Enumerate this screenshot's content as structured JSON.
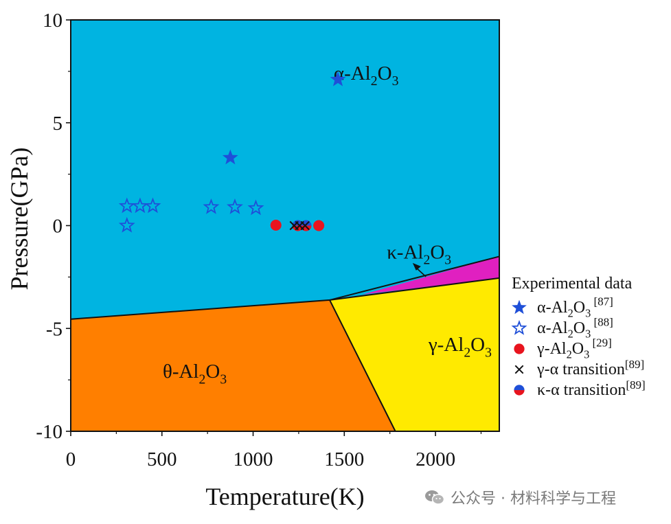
{
  "chart_data": {
    "type": "scatter",
    "title": "",
    "xlabel": "Temperature(K)",
    "ylabel": "Pressure(GPa)",
    "xlim": [
      0,
      2350
    ],
    "ylim": [
      -10,
      10
    ],
    "x_ticks": [
      0,
      500,
      1000,
      1500,
      2000
    ],
    "y_ticks": [
      10,
      5,
      0,
      -5,
      -10
    ],
    "grid": false,
    "legend_title": "Experimental data",
    "legend_position": "right",
    "regions": [
      {
        "name": "α-Al2O3",
        "label_main": "α-Al",
        "sub1": "2",
        "mid": "O",
        "sub2": "3",
        "color": "#00B4E1",
        "label_at": [
          1620,
          7.1
        ]
      },
      {
        "name": "θ-Al2O3",
        "label_main": "θ-Al",
        "sub1": "2",
        "mid": "O",
        "sub2": "3",
        "color": "#FF7F00",
        "polygon": [
          [
            0,
            -4.55
          ],
          [
            1420,
            -3.62
          ],
          [
            1780,
            -10
          ],
          [
            0,
            -10
          ]
        ],
        "label_at": [
          680,
          -7.4
        ]
      },
      {
        "name": "γ-Al2O3",
        "label_main": "γ-Al",
        "sub1": "2",
        "mid": "O",
        "sub2": "3",
        "color": "#FFEA00",
        "polygon": [
          [
            1420,
            -3.62
          ],
          [
            2350,
            -2.55
          ],
          [
            2350,
            -10
          ],
          [
            1780,
            -10
          ]
        ],
        "label_at": [
          2135,
          -6.1
        ]
      },
      {
        "name": "κ-Al2O3",
        "label_main": "κ-Al",
        "sub1": "2",
        "mid": "O",
        "sub2": "3",
        "color": "#E020C0",
        "polygon": [
          [
            1600,
            -3.35
          ],
          [
            2350,
            -1.5
          ],
          [
            2350,
            -2.55
          ]
        ],
        "label_at": [
          1910,
          -1.6
        ]
      }
    ],
    "boundaries": [
      [
        [
          0,
          -4.55
        ],
        [
          1420,
          -3.62
        ],
        [
          2350,
          -2.55
        ]
      ],
      [
        [
          1420,
          -3.62
        ],
        [
          1780,
          -10
        ]
      ],
      [
        [
          1420,
          -3.62
        ],
        [
          2350,
          -1.5
        ]
      ]
    ],
    "series": [
      {
        "name": "α-Al2O3 [87]",
        "label_main": "α-Al",
        "sub1": "2",
        "mid": "O",
        "sub2": "3",
        "ref": " [87]",
        "marker": "star-filled",
        "color": "#1F4FD8",
        "x": [
          875,
          1465
        ],
        "y": [
          3.3,
          7.1
        ]
      },
      {
        "name": "α-Al2O3 [88]",
        "label_main": "α-Al",
        "sub1": "2",
        "mid": "O",
        "sub2": "3",
        "ref": " [88]",
        "marker": "star-open",
        "color": "#1F4FD8",
        "x": [
          308,
          380,
          450,
          770,
          900,
          1015,
          308
        ],
        "y": [
          0.95,
          0.95,
          0.95,
          0.9,
          0.9,
          0.85,
          0.0
        ]
      },
      {
        "name": "γ-Al2O3 [29]",
        "label_main": "γ-Al",
        "sub1": "2",
        "mid": "O",
        "sub2": "3",
        "ref": " [29]",
        "marker": "circle",
        "color": "#E8141E",
        "x": [
          1125,
          1360
        ],
        "y": [
          0.02,
          0.0
        ]
      },
      {
        "name": "γ-α transition[89]",
        "label_main": "γ-α transition",
        "ref": "[89]",
        "marker": "x",
        "color": "#111111",
        "x": [
          1225,
          1255,
          1285
        ],
        "y": [
          0.0,
          0.0,
          0.0
        ]
      },
      {
        "name": "κ-α transition[89]",
        "label_main": "κ-α transition",
        "ref": "[89]",
        "marker": "half-circle",
        "color": "#1F4FD8",
        "color2": "#E8141E",
        "x": [
          1245,
          1290
        ],
        "y": [
          0.0,
          0.0
        ]
      }
    ]
  },
  "watermark": {
    "text": "公众号 · 材料科学与工程"
  }
}
